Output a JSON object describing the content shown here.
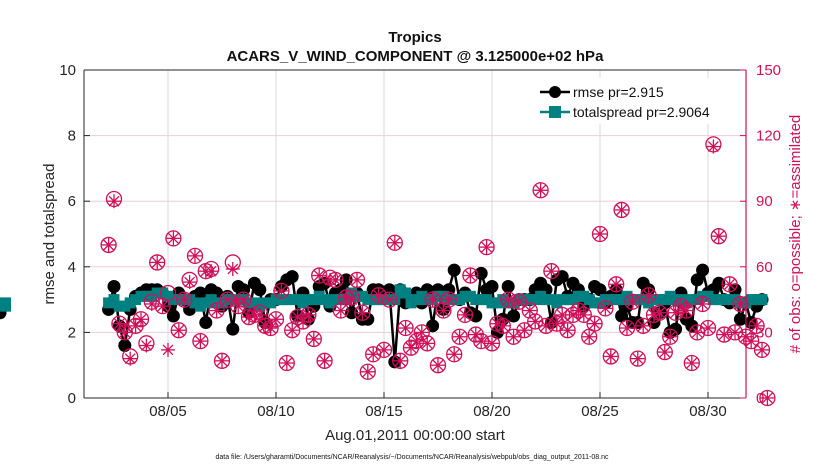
{
  "chart_data": {
    "type": "line",
    "title": "Tropics",
    "subtitle": "ACARS_V_WIND_COMPONENT @ 3.125000e+02 hPa",
    "xlabel": "Aug.01,2011 00:00:00 start",
    "ylabel": "rmse and totalspread",
    "ylabel_right": "# of obs: o=possible; ∗=assimilated",
    "footnote": "data file: /Users/gharamti/Documents/NCAR/Reanalysis/~/Documents/NCAR/Reanalysis/webpub/obs_diag_output_2011-08.nc",
    "x_unit": "days since Aug.01,2011 00:00:00",
    "xlim": [
      1.1,
      31.75
    ],
    "ylim": [
      0,
      10
    ],
    "ylim_right": [
      0,
      150
    ],
    "xticks": [
      4,
      9,
      14,
      19,
      24,
      29
    ],
    "xtick_labels": [
      "08/05",
      "08/10",
      "08/15",
      "08/20",
      "08/25",
      "08/30"
    ],
    "yticks": [
      0,
      2,
      4,
      6,
      8,
      10
    ],
    "ytick_labels": [
      "0",
      "2",
      "4",
      "6",
      "8",
      "10"
    ],
    "yticks_right": [
      0,
      30,
      60,
      90,
      120,
      150
    ],
    "ytick_labels_right": [
      "0",
      "30",
      "60",
      "90",
      "120",
      "150"
    ],
    "grid": true,
    "legend_position": "top-right",
    "legend": [
      {
        "label": "rmse pr=2.915",
        "color": "#000000",
        "marker": "circle"
      },
      {
        "label": "totalspread pr=2.9064",
        "color": "#008080",
        "marker": "square"
      }
    ],
    "colors": {
      "rmse": "#000000",
      "totalspread": "#008080",
      "obs": "#d0105a",
      "grid": "#d8d8d8",
      "grid_right": "#f3c8d8"
    },
    "x": [
      1.25,
      1.5,
      1.75,
      2.0,
      2.25,
      2.5,
      2.75,
      3.0,
      3.25,
      3.5,
      3.75,
      4.0,
      4.25,
      4.5,
      4.75,
      5.0,
      5.25,
      5.5,
      5.75,
      6.0,
      6.25,
      6.5,
      6.75,
      7.0,
      7.25,
      7.5,
      7.75,
      8.0,
      8.25,
      8.5,
      8.75,
      9.0,
      9.25,
      9.5,
      9.75,
      10.0,
      10.25,
      10.5,
      10.75,
      11.0,
      11.25,
      11.5,
      11.75,
      12.0,
      12.25,
      12.5,
      12.75,
      13.0,
      13.25,
      13.5,
      13.75,
      14.0,
      14.25,
      14.5,
      14.75,
      15.0,
      15.25,
      15.5,
      15.75,
      16.0,
      16.25,
      16.5,
      16.75,
      17.0,
      17.25,
      17.5,
      17.75,
      18.0,
      18.25,
      18.5,
      18.75,
      19.0,
      19.25,
      19.5,
      19.75,
      20.0,
      20.25,
      20.5,
      20.75,
      21.0,
      21.25,
      21.5,
      21.75,
      22.0,
      22.25,
      22.5,
      22.75,
      23.0,
      23.25,
      23.5,
      23.75,
      24.0,
      24.25,
      24.5,
      24.75,
      25.0,
      25.25,
      25.5,
      25.75,
      26.0,
      26.25,
      26.5,
      26.75,
      27.0,
      27.25,
      27.5,
      27.75,
      28.0,
      28.25,
      28.5,
      28.75,
      29.0,
      29.25,
      29.5,
      29.75,
      30.0,
      30.25,
      30.5,
      30.75,
      31.0,
      31.25,
      31.5
    ],
    "series": [
      {
        "name": "rmse",
        "values": [
          2.7,
          3.4,
          2.2,
          1.6,
          2.7,
          3.1,
          3.2,
          3.3,
          3.3,
          3.3,
          3.2,
          2.8,
          2.5,
          3.2,
          3.0,
          2.7,
          3.1,
          3.2,
          2.3,
          3.3,
          3.2,
          2.8,
          3.1,
          2.1,
          3.4,
          3.3,
          2.6,
          3.5,
          3.3,
          2.3,
          3.0,
          3.0,
          3.4,
          3.6,
          3.7,
          2.5,
          3.2,
          2.4,
          2.8,
          3.4,
          3.5,
          2.8,
          3.2,
          3.3,
          3.6,
          2.6,
          3.2,
          2.4,
          2.4,
          3.3,
          3.3,
          3.2,
          3.3,
          1.1,
          3.3,
          2.9,
          3.0,
          3.2,
          2.9,
          3.3,
          2.2,
          3.3,
          2.7,
          3.3,
          3.9,
          3.0,
          3.2,
          2.6,
          2.5,
          3.8,
          3.3,
          3.4,
          2.0,
          2.4,
          3.4,
          2.5,
          3.0,
          3.0,
          3.0,
          3.3,
          3.5,
          3.3,
          2.3,
          3.6,
          3.7,
          3.1,
          3.5,
          3.3,
          2.8,
          3.0,
          3.4,
          3.3,
          2.9,
          3.1,
          3.3,
          2.5,
          2.8,
          2.3,
          2.3,
          3.5,
          3.3,
          2.3,
          2.6,
          2.9,
          2.0,
          2.1,
          3.2,
          2.4,
          2.2,
          3.6,
          3.9,
          3.2,
          3.3,
          3.5,
          3.0,
          2.9,
          3.3,
          2.4,
          2.9,
          2.3,
          2.8,
          3.0,
          2.6,
          2.7
        ]
      },
      {
        "name": "totalspread",
        "values": [
          2.9,
          3.0,
          2.8,
          2.8,
          2.9,
          3.0,
          3.1,
          3.1,
          3.1,
          3.2,
          3.2,
          3.1,
          3.0,
          3.0,
          3.0,
          3.0,
          2.9,
          2.8,
          2.9,
          3.0,
          2.9,
          2.9,
          3.0,
          3.0,
          3.0,
          3.0,
          2.9,
          2.9,
          2.8,
          2.9,
          2.9,
          3.0,
          3.0,
          3.0,
          3.0,
          3.0,
          2.9,
          3.0,
          3.0,
          3.1,
          3.0,
          2.9,
          3.0,
          3.0,
          3.0,
          3.2,
          3.1,
          3.1,
          3.0,
          3.0,
          3.0,
          3.0,
          3.0,
          3.0,
          3.3,
          3.2,
          2.9,
          3.0,
          3.1,
          3.0,
          3.0,
          3.1,
          3.1,
          3.0,
          3.0,
          3.0,
          3.1,
          3.1,
          3.0,
          3.0,
          3.0,
          2.9,
          2.9,
          3.0,
          2.9,
          2.9,
          3.0,
          3.0,
          3.0,
          3.0,
          3.1,
          3.0,
          3.0,
          2.9,
          3.0,
          3.0,
          3.0,
          3.1,
          3.1,
          3.0,
          2.9,
          2.9,
          3.0,
          3.0,
          3.0,
          3.0,
          3.1,
          3.0,
          3.0,
          3.0,
          2.9,
          3.0,
          3.0,
          3.0,
          3.1,
          3.0,
          3.0,
          2.9,
          3.0,
          3.0,
          3.1,
          3.1,
          3.0,
          3.0,
          3.0,
          3.0,
          3.0,
          2.9,
          2.9,
          3.0,
          3.0,
          3.0,
          2.9,
          2.8
        ]
      },
      {
        "name": "obs_possible",
        "axis": "right",
        "values": [
          70,
          91,
          34,
          30,
          19,
          33,
          36,
          25,
          44,
          62,
          42,
          48,
          73,
          31,
          45,
          54,
          65,
          26,
          58,
          59,
          40,
          17,
          45,
          62,
          42,
          45,
          37,
          38,
          39,
          33,
          32,
          36,
          49,
          16,
          31,
          37,
          35,
          38,
          27,
          56,
          17,
          55,
          54,
          40,
          46,
          46,
          54,
          39,
          12,
          20,
          47,
          22,
          45,
          71,
          17,
          32,
          23,
          26,
          30,
          25,
          45,
          15,
          40,
          45,
          20,
          28,
          38,
          56,
          29,
          26,
          69,
          25,
          34,
          33,
          45,
          28,
          44,
          31,
          40,
          35,
          95,
          33,
          58,
          34,
          38,
          31,
          38,
          40,
          38,
          28,
          34,
          75,
          41,
          19,
          52,
          86,
          32,
          44,
          18,
          33,
          47,
          38,
          39,
          21,
          28,
          39,
          42,
          40,
          16,
          30,
          43,
          32,
          116,
          74,
          29,
          52,
          30,
          43,
          28,
          26,
          33,
          22,
          36,
          17,
          14,
          42,
          30,
          18
        ]
      },
      {
        "name": "obs_assimilated",
        "axis": "right",
        "values": [
          70,
          90,
          34,
          30,
          18,
          33,
          36,
          24,
          43,
          62,
          42,
          22,
          73,
          31,
          45,
          53,
          65,
          26,
          58,
          58,
          40,
          17,
          45,
          59,
          42,
          45,
          37,
          38,
          38,
          33,
          32,
          36,
          49,
          16,
          31,
          37,
          35,
          38,
          27,
          56,
          17,
          54,
          54,
          40,
          46,
          45,
          54,
          39,
          12,
          20,
          47,
          22,
          45,
          71,
          17,
          32,
          23,
          26,
          30,
          25,
          45,
          15,
          40,
          45,
          20,
          28,
          38,
          56,
          29,
          26,
          69,
          25,
          34,
          33,
          45,
          28,
          44,
          31,
          40,
          35,
          95,
          33,
          58,
          34,
          38,
          31,
          38,
          40,
          38,
          28,
          34,
          75,
          41,
          19,
          52,
          86,
          32,
          44,
          18,
          33,
          47,
          38,
          39,
          21,
          28,
          39,
          42,
          40,
          16,
          30,
          43,
          32,
          115,
          74,
          29,
          52,
          30,
          43,
          28,
          26,
          33,
          22,
          36,
          17,
          14,
          42,
          30,
          18
        ]
      }
    ],
    "extra_points_right": [
      {
        "x": 31.75,
        "possible": 0,
        "assimilated": 0
      }
    ]
  }
}
